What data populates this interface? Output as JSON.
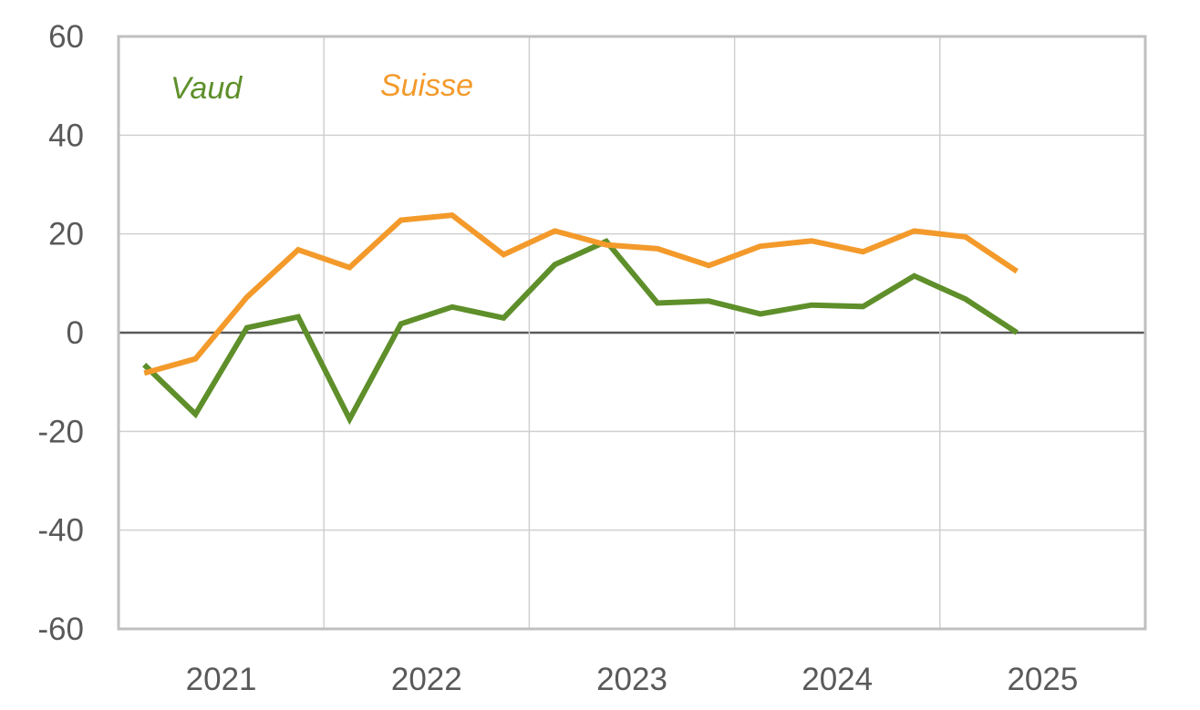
{
  "chart_data": {
    "type": "line",
    "title": "",
    "xlabel": "",
    "ylabel": "",
    "ylim": [
      -60,
      60
    ],
    "y_ticks": [
      "60",
      "40",
      "20",
      "0",
      "-20",
      "-40",
      "-60"
    ],
    "x_tick_labels": [
      "2021",
      "2022",
      "2023",
      "2024",
      "2025"
    ],
    "x_range": [
      0,
      20
    ],
    "grid": true,
    "legend_position": "inline top-left",
    "x": [
      0.5,
      1.5,
      2.5,
      3.5,
      4.5,
      5.5,
      6.5,
      7.5,
      8.5,
      9.5,
      10.5,
      11.5,
      12.5,
      13.5,
      14.5,
      15.5,
      16.5,
      17.5
    ],
    "series": [
      {
        "name": "Vaud",
        "color": "#5e8f2a",
        "values": [
          -6.5,
          -16.5,
          1,
          3.2,
          -17.5,
          1.8,
          5.2,
          3,
          13.8,
          18.5,
          6,
          6.4,
          3.8,
          5.6,
          5.3,
          11.5,
          6.8,
          0
        ]
      },
      {
        "name": "Suisse",
        "color": "#f39a2b",
        "values": [
          -8.2,
          -5.3,
          7.2,
          16.8,
          13.2,
          22.8,
          23.8,
          15.8,
          20.6,
          17.8,
          17,
          13.6,
          17.5,
          18.6,
          16.4,
          20.6,
          19.4,
          12.4
        ]
      }
    ]
  }
}
